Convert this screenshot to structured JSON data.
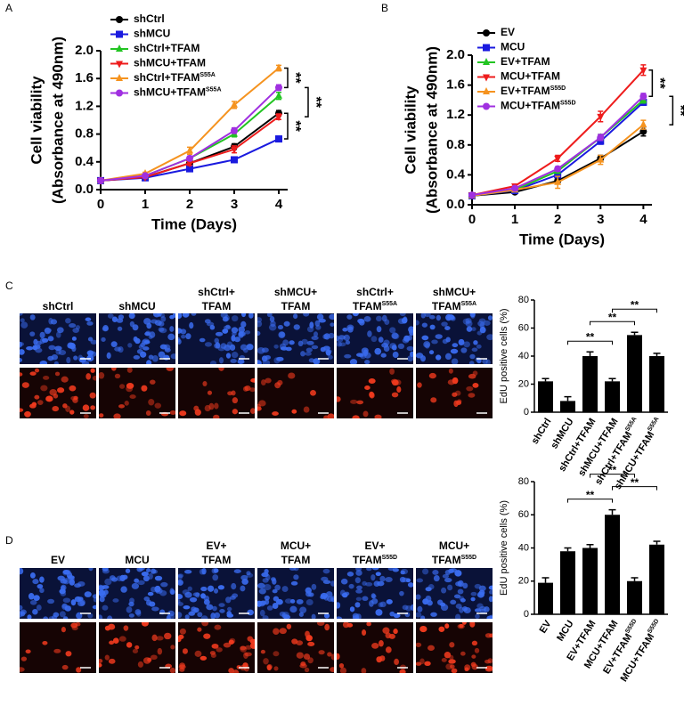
{
  "chart_data": [
    {
      "panel": "A",
      "type": "line",
      "xlabel": "Time (Days)",
      "ylabel": [
        "Cell viability",
        "(Absorbance at 490nm)"
      ],
      "x": [
        0,
        1,
        2,
        3,
        4
      ],
      "xlim": [
        0,
        4.2
      ],
      "xticks": [
        0,
        1,
        2,
        3,
        4
      ],
      "ylim": [
        0,
        2
      ],
      "yticks": [
        {
          "value": 0,
          "label": "0.0"
        },
        0.4,
        0.8,
        1.2,
        1.6,
        {
          "value": 2,
          "label": "2.0"
        }
      ],
      "series": [
        {
          "name": "shCtrl",
          "name_sup": null,
          "color": "#000000",
          "marker": "circle",
          "values": [
            0.13,
            0.18,
            0.38,
            0.62,
            1.1
          ],
          "errors": [
            0.01,
            0.02,
            0.03,
            0.04,
            0.04
          ]
        },
        {
          "name": "shMCU",
          "name_sup": null,
          "color": "#1a1adf",
          "marker": "square",
          "values": [
            0.13,
            0.17,
            0.3,
            0.43,
            0.73
          ],
          "errors": [
            0.01,
            0.02,
            0.02,
            0.03,
            0.04
          ]
        },
        {
          "name": "shCtrl+TFAM",
          "name_sup": null,
          "color": "#22c422",
          "marker": "triangle-up",
          "values": [
            0.13,
            0.2,
            0.45,
            0.8,
            1.35
          ],
          "errors": [
            0.01,
            0.02,
            0.03,
            0.04,
            0.05
          ]
        },
        {
          "name": "shMCU+TFAM",
          "name_sup": null,
          "color": "#ee1c1c",
          "marker": "triangle-down",
          "values": [
            0.13,
            0.18,
            0.38,
            0.58,
            1.05
          ],
          "errors": [
            0.01,
            0.02,
            0.03,
            0.05,
            0.04
          ]
        },
        {
          "name": "shCtrl+TFAM",
          "name_sup": "S55A",
          "color": "#f5931f",
          "marker": "triangle-up",
          "values": [
            0.13,
            0.23,
            0.56,
            1.22,
            1.75
          ],
          "errors": [
            0.01,
            0.02,
            0.05,
            0.05,
            0.04
          ]
        },
        {
          "name": "shMCU+TFAM",
          "name_sup": "S55A",
          "color": "#a030e0",
          "marker": "circle",
          "values": [
            0.13,
            0.2,
            0.45,
            0.85,
            1.47
          ],
          "errors": [
            0.01,
            0.02,
            0.03,
            0.04,
            0.04
          ]
        }
      ],
      "significance": [
        {
          "text": "**",
          "series": [
            4,
            5
          ]
        },
        {
          "text": "**",
          "series": [
            5,
            3
          ]
        },
        {
          "text": "**",
          "series": [
            0,
            1
          ]
        }
      ]
    },
    {
      "panel": "B",
      "type": "line",
      "xlabel": "Time (Days)",
      "ylabel": [
        "Cell viability",
        "(Absorbance at 490nm)"
      ],
      "x": [
        0,
        1,
        2,
        3,
        4
      ],
      "xlim": [
        0,
        4.2
      ],
      "xticks": [
        0,
        1,
        2,
        3,
        4
      ],
      "ylim": [
        0,
        2
      ],
      "yticks": [
        {
          "value": 0,
          "label": "0.0"
        },
        0.4,
        0.8,
        1.2,
        1.6,
        {
          "value": 2,
          "label": "2.0"
        }
      ],
      "series": [
        {
          "name": "EV",
          "name_sup": null,
          "color": "#000000",
          "marker": "circle",
          "values": [
            0.12,
            0.17,
            0.32,
            0.62,
            0.98
          ],
          "errors": [
            0.01,
            0.02,
            0.03,
            0.04,
            0.06
          ]
        },
        {
          "name": "MCU",
          "name_sup": null,
          "color": "#1a1adf",
          "marker": "square",
          "values": [
            0.12,
            0.19,
            0.4,
            0.85,
            1.37
          ],
          "errors": [
            0.01,
            0.02,
            0.03,
            0.04,
            0.04
          ]
        },
        {
          "name": "EV+TFAM",
          "name_sup": null,
          "color": "#22c422",
          "marker": "triangle-up",
          "values": [
            0.12,
            0.2,
            0.45,
            0.9,
            1.4
          ],
          "errors": [
            0.01,
            0.02,
            0.03,
            0.04,
            0.04
          ]
        },
        {
          "name": "MCU+TFAM",
          "name_sup": null,
          "color": "#ee1c1c",
          "marker": "triangle-down",
          "values": [
            0.13,
            0.25,
            0.62,
            1.18,
            1.8
          ],
          "errors": [
            0.01,
            0.02,
            0.04,
            0.07,
            0.07
          ]
        },
        {
          "name": "EV+TFAM",
          "name_sup": "S55D",
          "color": "#f5931f",
          "marker": "triangle-up",
          "values": [
            0.12,
            0.2,
            0.3,
            0.6,
            1.07
          ],
          "errors": [
            0.01,
            0.02,
            0.08,
            0.06,
            0.06
          ]
        },
        {
          "name": "MCU+TFAM",
          "name_sup": "S55D",
          "color": "#a030e0",
          "marker": "circle",
          "values": [
            0.13,
            0.22,
            0.48,
            0.9,
            1.45
          ],
          "errors": [
            0.01,
            0.02,
            0.03,
            0.04,
            0.04
          ]
        }
      ],
      "significance": [
        {
          "text": "**",
          "series": [
            3,
            5
          ]
        },
        {
          "text": "**",
          "series": [
            5,
            4
          ]
        },
        {
          "text": "**",
          "series": [
            3,
            2
          ]
        }
      ]
    },
    {
      "panel": "C",
      "type": "bar",
      "ylabel": "EdU positive cells (%)",
      "color": "#000000",
      "categories": [
        "shCtrl",
        "shMCU",
        "shCtrl+TFAM",
        "shMCU+TFAM",
        "shCtrl+TFAM",
        "shMCU+TFAM"
      ],
      "category_sups": [
        null,
        null,
        null,
        null,
        "S55A",
        "S55A"
      ],
      "values": [
        22,
        8,
        40,
        22,
        55,
        40
      ],
      "errors": [
        2,
        3,
        3,
        2,
        2,
        2
      ],
      "ylim": [
        0,
        80
      ],
      "yticks": [
        0,
        20,
        40,
        60,
        80
      ],
      "significance": [
        {
          "text": "**",
          "categories": [
            1,
            3
          ]
        },
        {
          "text": "**",
          "categories": [
            2,
            4
          ]
        },
        {
          "text": "**",
          "categories": [
            3,
            5
          ]
        }
      ]
    },
    {
      "panel": "D",
      "type": "bar",
      "ylabel": "EdU positive cells (%)",
      "color": "#000000",
      "categories": [
        "EV",
        "MCU",
        "EV+TFAM",
        "MCU+TFAM",
        "EV+TFAM",
        "MCU+TFAM"
      ],
      "category_sups": [
        null,
        null,
        null,
        null,
        "S55D",
        "S55D"
      ],
      "values": [
        19,
        38,
        40,
        60,
        20,
        42
      ],
      "errors": [
        3,
        2,
        2,
        3,
        2,
        2
      ],
      "ylim": [
        0,
        80
      ],
      "yticks": [
        0,
        20,
        40,
        60,
        80
      ],
      "significance": [
        {
          "text": "**",
          "categories": [
            1,
            3
          ]
        },
        {
          "text": "**",
          "categories": [
            3,
            5
          ]
        },
        {
          "text": "**",
          "categories": [
            2,
            4
          ]
        }
      ]
    }
  ],
  "image_panels": [
    {
      "channel_colors": [
        "#3a6cf0",
        "#f03a1e"
      ],
      "columns": [
        {
          "lines": [
            "shCtrl"
          ],
          "sup": null
        },
        {
          "lines": [
            "shMCU"
          ],
          "sup": null
        },
        {
          "lines": [
            "shCtrl+",
            "TFAM"
          ],
          "sup": null
        },
        {
          "lines": [
            "shMCU+",
            "TFAM"
          ],
          "sup": null
        },
        {
          "lines": [
            "shCtrl+",
            "TFAM"
          ],
          "sup": "S55A"
        },
        {
          "lines": [
            "shMCU+",
            "TFAM"
          ],
          "sup": "S55A"
        }
      ]
    },
    {
      "channel_colors": [
        "#3a6cf0",
        "#f03a1e"
      ],
      "columns": [
        {
          "lines": [
            "EV"
          ],
          "sup": null
        },
        {
          "lines": [
            "MCU"
          ],
          "sup": null
        },
        {
          "lines": [
            "EV+",
            "TFAM"
          ],
          "sup": null
        },
        {
          "lines": [
            "MCU+",
            "TFAM"
          ],
          "sup": null
        },
        {
          "lines": [
            "EV+",
            "TFAM"
          ],
          "sup": "S55D"
        },
        {
          "lines": [
            "MCU+",
            "TFAM"
          ],
          "sup": "S55D"
        }
      ]
    }
  ]
}
